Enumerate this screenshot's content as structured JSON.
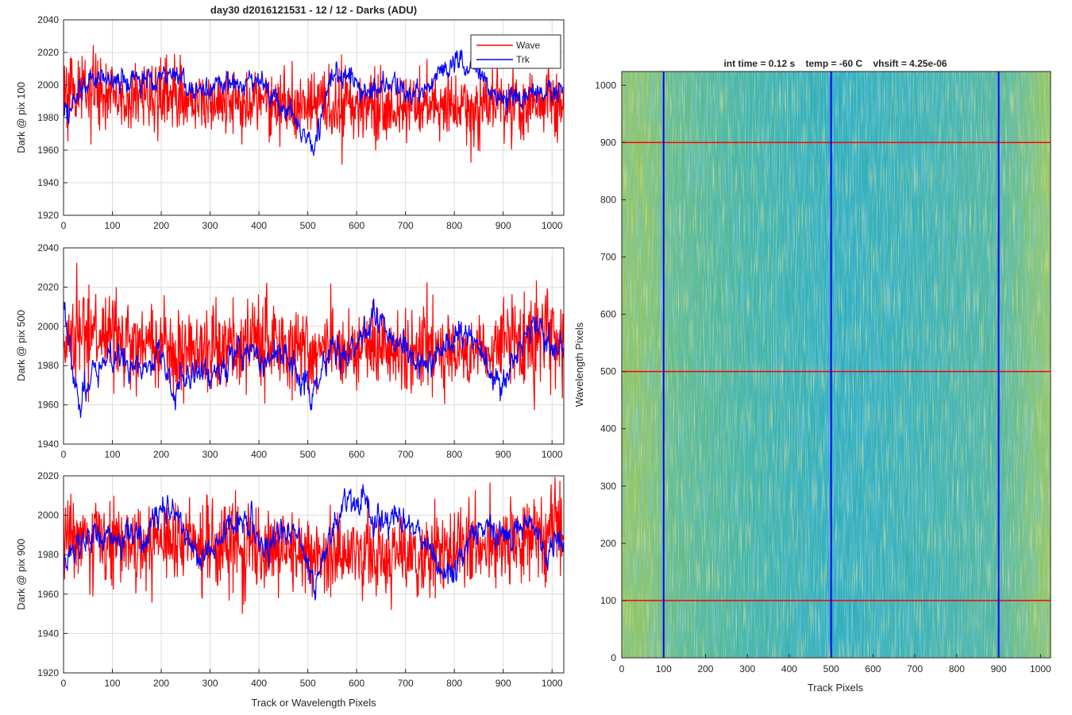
{
  "figure_title": "day30 d2016121531 - 12 / 12 - Darks (ADU)",
  "colors": {
    "wave": "#ff0000",
    "trk": "#0000ff",
    "grid": "#dcdcdc",
    "axis": "#262626"
  },
  "chart_data": [
    {
      "type": "line",
      "title": "day30 d2016121531 - 12 / 12 - Darks (ADU)",
      "xlabel": "",
      "ylabel": "Dark @ pix 100",
      "xlim": [
        0,
        1024
      ],
      "ylim": [
        1920,
        2040
      ],
      "xticks": [
        "0",
        "100",
        "200",
        "300",
        "400",
        "500",
        "600",
        "700",
        "800",
        "900",
        "1000"
      ],
      "yticks": [
        "1920",
        "1940",
        "1960",
        "1980",
        "2000",
        "2020",
        "2040"
      ],
      "grid": true,
      "legend": "top-right",
      "legend_entries": [
        "Wave",
        "Trk"
      ],
      "series": [
        {
          "name": "Wave",
          "color": "#ff0000",
          "sampled_every": 8,
          "x": [
            0,
            32,
            64,
            96,
            128,
            160,
            192,
            224,
            256,
            288,
            320,
            352,
            384,
            416,
            448,
            480,
            512,
            544,
            576,
            608,
            640,
            672,
            704,
            736,
            768,
            800,
            832,
            864,
            896,
            928,
            960,
            992,
            1020
          ],
          "values": [
            1992,
            1995,
            1996,
            1994,
            1992,
            1993,
            1994,
            1992,
            1991,
            1990,
            1990,
            1991,
            1992,
            1988,
            1987,
            1986,
            1986,
            1987,
            1988,
            1988,
            1986,
            1985,
            1986,
            1988,
            1989,
            1988,
            1986,
            1986,
            1987,
            1988,
            1990,
            1992,
            1988
          ]
        },
        {
          "name": "Trk",
          "color": "#0000ff",
          "sampled_every": 8,
          "x": [
            0,
            32,
            64,
            96,
            128,
            160,
            192,
            224,
            256,
            288,
            320,
            352,
            384,
            416,
            448,
            480,
            512,
            544,
            576,
            608,
            640,
            672,
            704,
            736,
            768,
            800,
            832,
            864,
            896,
            928,
            960,
            992,
            1020
          ],
          "values": [
            1978,
            1998,
            2004,
            2004,
            2002,
            2004,
            2006,
            2009,
            1996,
            1996,
            2000,
            1998,
            2004,
            1998,
            1988,
            1978,
            1962,
            2004,
            2008,
            2000,
            1996,
            2002,
            1994,
            1998,
            2008,
            2012,
            2014,
            2004,
            1990,
            1994,
            1996,
            1994,
            1995
          ]
        }
      ]
    },
    {
      "type": "line",
      "title": "",
      "xlabel": "",
      "ylabel": "Dark @ pix 500",
      "xlim": [
        0,
        1024
      ],
      "ylim": [
        1940,
        2040
      ],
      "xticks": [
        "0",
        "100",
        "200",
        "300",
        "400",
        "500",
        "600",
        "700",
        "800",
        "900",
        "1000"
      ],
      "yticks": [
        "1940",
        "1960",
        "1980",
        "2000",
        "2020",
        "2040"
      ],
      "grid": true,
      "series": [
        {
          "name": "Wave",
          "color": "#ff0000",
          "sampled_every": 8,
          "x": [
            0,
            32,
            64,
            96,
            128,
            160,
            192,
            224,
            256,
            288,
            320,
            352,
            384,
            416,
            448,
            480,
            512,
            544,
            576,
            608,
            640,
            672,
            704,
            736,
            768,
            800,
            832,
            864,
            896,
            928,
            960,
            992,
            1020
          ],
          "values": [
            1992,
            1994,
            1996,
            1995,
            1992,
            1989,
            1988,
            1986,
            1987,
            1990,
            1989,
            1988,
            1989,
            1990,
            1989,
            1987,
            1986,
            1988,
            1990,
            1990,
            1987,
            1986,
            1987,
            1988,
            1989,
            1986,
            1985,
            1986,
            1990,
            1992,
            1993,
            1994,
            1990
          ]
        },
        {
          "name": "Trk",
          "color": "#0000ff",
          "sampled_every": 8,
          "x": [
            0,
            32,
            64,
            96,
            128,
            160,
            192,
            224,
            256,
            288,
            320,
            352,
            384,
            416,
            448,
            480,
            512,
            544,
            576,
            608,
            640,
            672,
            704,
            736,
            768,
            800,
            832,
            864,
            896,
            928,
            960,
            992,
            1020
          ],
          "values": [
            2010,
            1960,
            1978,
            1986,
            1984,
            1976,
            1990,
            1966,
            1978,
            1974,
            1976,
            1986,
            1990,
            1982,
            1988,
            1974,
            1965,
            1988,
            1986,
            1996,
            2006,
            1996,
            1986,
            1980,
            1986,
            1994,
            1996,
            1984,
            1965,
            1990,
            2000,
            1994,
            1988
          ]
        }
      ]
    },
    {
      "type": "line",
      "title": "",
      "xlabel": "Track or Wavelength Pixels",
      "ylabel": "Dark @ pix 900",
      "xlim": [
        0,
        1024
      ],
      "ylim": [
        1920,
        2020
      ],
      "xticks": [
        "0",
        "100",
        "200",
        "300",
        "400",
        "500",
        "600",
        "700",
        "800",
        "900",
        "1000"
      ],
      "yticks": [
        "1920",
        "1940",
        "1960",
        "1980",
        "2000",
        "2020"
      ],
      "grid": true,
      "series": [
        {
          "name": "Wave",
          "color": "#ff0000",
          "sampled_every": 8,
          "x": [
            0,
            32,
            64,
            96,
            128,
            160,
            192,
            224,
            256,
            288,
            320,
            352,
            384,
            416,
            448,
            480,
            512,
            544,
            576,
            608,
            640,
            672,
            704,
            736,
            768,
            800,
            832,
            864,
            896,
            928,
            960,
            992,
            1020
          ],
          "values": [
            1990,
            1989,
            1988,
            1987,
            1986,
            1985,
            1985,
            1984,
            1983,
            1983,
            1983,
            1984,
            1984,
            1983,
            1982,
            1981,
            1980,
            1980,
            1979,
            1979,
            1978,
            1978,
            1979,
            1979,
            1980,
            1981,
            1982,
            1984,
            1986,
            1988,
            1990,
            1992,
            1994
          ]
        },
        {
          "name": "Trk",
          "color": "#0000ff",
          "sampled_every": 8,
          "x": [
            0,
            32,
            64,
            96,
            128,
            160,
            192,
            224,
            256,
            288,
            320,
            352,
            384,
            416,
            448,
            480,
            512,
            544,
            576,
            608,
            640,
            672,
            704,
            736,
            768,
            800,
            832,
            864,
            896,
            928,
            960,
            992,
            1020
          ],
          "values": [
            1975,
            1985,
            1990,
            1988,
            1992,
            1988,
            2000,
            2005,
            1988,
            1978,
            1990,
            1996,
            1994,
            1980,
            1995,
            1990,
            1962,
            1990,
            2005,
            2008,
            1998,
            1996,
            1998,
            1990,
            1974,
            1966,
            1990,
            1996,
            1988,
            1992,
            1994,
            1980,
            1990
          ]
        }
      ]
    },
    {
      "type": "heatmap",
      "title": "int time = 0.12 s    temp = -60 C    vhsift = 4.25e-06",
      "xlabel": "Track Pixels",
      "ylabel": "Wavelength Pixels",
      "xlim": [
        0,
        1024
      ],
      "ylim": [
        0,
        1024
      ],
      "xticks": [
        "0",
        "100",
        "200",
        "300",
        "400",
        "500",
        "600",
        "700",
        "800",
        "900",
        "1000"
      ],
      "yticks": [
        "0",
        "100",
        "200",
        "300",
        "400",
        "500",
        "600",
        "700",
        "800",
        "900",
        "1000"
      ],
      "colormap": "parula",
      "color_range_adu": [
        1950,
        2010
      ],
      "markers": {
        "vertical_lines_x": [
          100,
          500,
          900
        ],
        "vertical_color": "#0000ff",
        "horizontal_lines_y": [
          100,
          500,
          900
        ],
        "horizontal_color": "#ff0000"
      }
    }
  ]
}
